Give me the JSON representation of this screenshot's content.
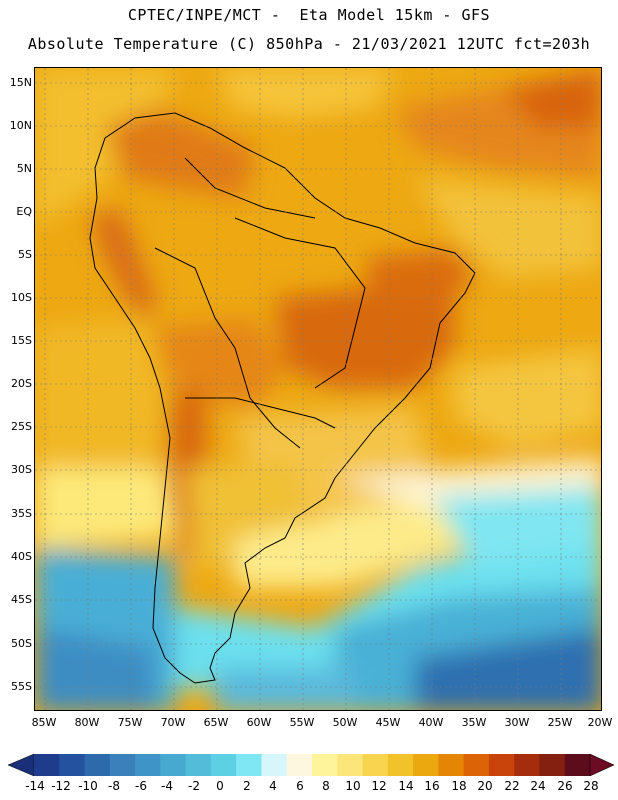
{
  "header": {
    "line1": "CPTEC/INPE/MCT -  Eta Model 15km - GFS",
    "line2": "Absolute Temperature (C) 850hPa - 21/03/2021 12UTC fct=203h"
  },
  "map": {
    "lat_labels": [
      "15N",
      "10N",
      "5N",
      "EQ",
      "5S",
      "10S",
      "15S",
      "20S",
      "25S",
      "30S",
      "35S",
      "40S",
      "45S",
      "50S",
      "55S"
    ],
    "lon_labels": [
      "85W",
      "80W",
      "75W",
      "70W",
      "65W",
      "60W",
      "55W",
      "50W",
      "45W",
      "40W",
      "35W",
      "30W",
      "25W",
      "20W"
    ]
  },
  "colorbar": {
    "labels": [
      "-14",
      "-12",
      "-10",
      "-8",
      "-6",
      "-4",
      "-2",
      "0",
      "2",
      "4",
      "6",
      "8",
      "10",
      "12",
      "14",
      "16",
      "18",
      "20",
      "22",
      "24",
      "26",
      "28"
    ],
    "colors": [
      "#1f3c8c",
      "#24529f",
      "#2c6aac",
      "#3b7fbb",
      "#3e94c6",
      "#48a9d0",
      "#53bcd9",
      "#5ed0e4",
      "#7fe7f3",
      "#d6f6fb",
      "#fdf7df",
      "#fef49b",
      "#fde679",
      "#f9d54f",
      "#f2c22b",
      "#eba80f",
      "#e48506",
      "#dc6407",
      "#c9440a",
      "#a52d0c",
      "#842010",
      "#5c0c1a"
    ],
    "min_color": "#1b2f78",
    "max_color": "#6b0c24"
  }
}
